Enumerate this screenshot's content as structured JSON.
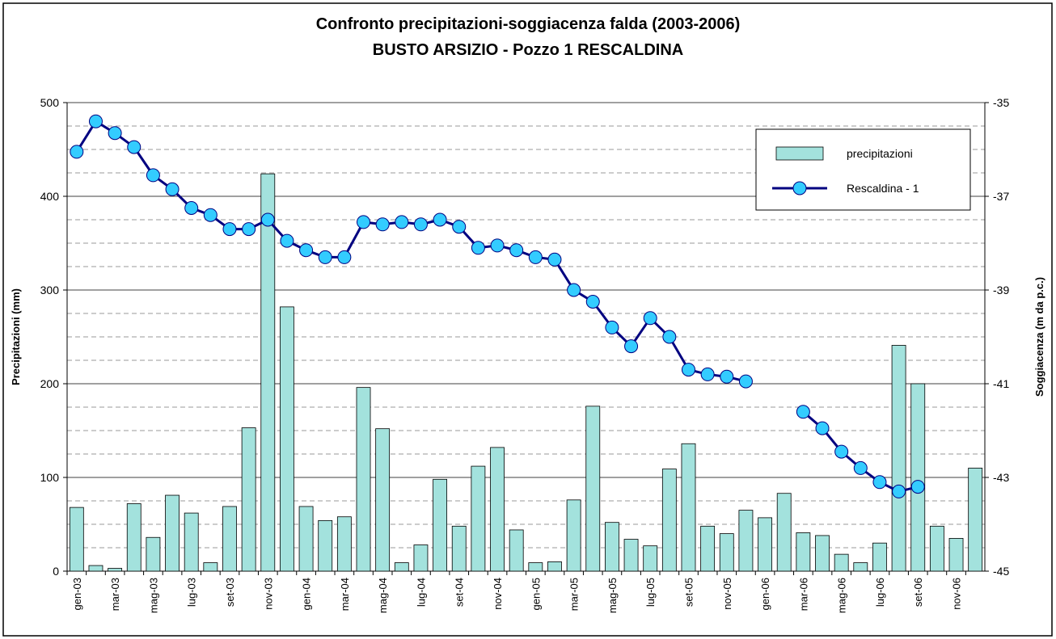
{
  "chart_data": {
    "type": "bar_line",
    "title": "Confronto precipitazioni-soggiacenza falda (2003-2006)",
    "subtitle": "BUSTO ARSIZIO - Pozzo 1 RESCALDINA",
    "ylabel": "Precipitazioni (mm)",
    "y2label": "Soggiacenza (m da p.c.)",
    "categories": [
      "gen-03",
      null,
      "mar-03",
      null,
      "mag-03",
      null,
      "lug-03",
      null,
      "set-03",
      null,
      "nov-03",
      null,
      "gen-04",
      null,
      "mar-04",
      null,
      "mag-04",
      null,
      "lug-04",
      null,
      "set-04",
      null,
      "nov-04",
      null,
      "gen-05",
      null,
      "mar-05",
      null,
      "mag-05",
      null,
      "lug-05",
      null,
      "set-05",
      null,
      "nov-05",
      null,
      "gen-06",
      null,
      "mar-06",
      null,
      "mag-06",
      null,
      "lug-06",
      null,
      "set-06",
      null,
      "nov-06",
      null
    ],
    "series": [
      {
        "name": "precipitazioni",
        "type": "bar",
        "color": "#a3e2dd",
        "values": [
          68,
          6,
          3,
          72,
          36,
          81,
          62,
          9,
          69,
          153,
          424,
          282,
          69,
          54,
          58,
          196,
          152,
          9,
          28,
          98,
          48,
          112,
          132,
          44,
          9,
          10,
          76,
          176,
          52,
          34,
          27,
          109,
          136,
          48,
          40,
          65,
          57,
          83,
          41,
          38,
          18,
          9,
          30,
          241,
          200,
          48,
          35,
          110
        ]
      },
      {
        "name": "Rescaldina - 1",
        "type": "line",
        "axis": "y2",
        "color": "#000080",
        "marker_color": "#33ccff",
        "values": [
          -36.05,
          -35.4,
          -35.65,
          -35.95,
          -36.55,
          -36.85,
          -37.25,
          -37.4,
          -37.7,
          -37.7,
          -37.5,
          -37.95,
          -38.15,
          -38.3,
          -38.3,
          -37.55,
          -37.6,
          -37.55,
          -37.6,
          -37.5,
          -37.65,
          -38.1,
          -38.05,
          -38.15,
          -38.3,
          -38.35,
          -39.0,
          -39.25,
          -39.8,
          -40.2,
          -39.6,
          -40.0,
          -40.7,
          -40.8,
          -40.85,
          -40.95,
          null,
          null,
          -41.6,
          -41.95,
          -42.45,
          -42.8,
          -43.1,
          -43.3,
          -43.2,
          null,
          null,
          null
        ]
      }
    ],
    "ylim": [
      0,
      500
    ],
    "yticks": [
      0,
      100,
      200,
      300,
      400,
      500
    ],
    "yminorticks": [
      25,
      50,
      75,
      125,
      150,
      175,
      225,
      250,
      275,
      325,
      350,
      375,
      425,
      450,
      475
    ],
    "y2lim": [
      -45,
      -35
    ],
    "y2ticks": [
      -45,
      -43,
      -41,
      -39,
      -37,
      -35
    ],
    "grid": true,
    "legend": "upper right"
  }
}
